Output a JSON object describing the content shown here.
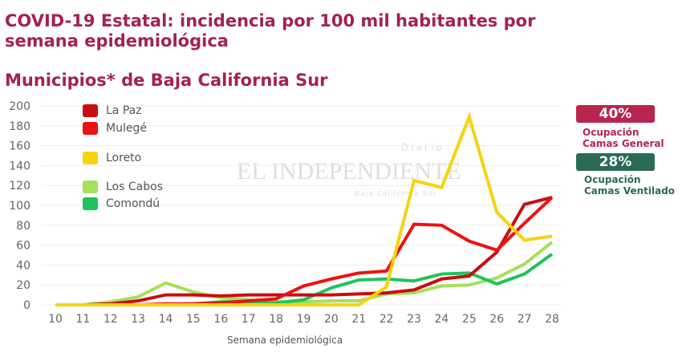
{
  "header": {
    "title": "COVID-19 Estatal: incidencia por 100 mil habitantes por semana epidemiológica",
    "subtitle": "Municipios* de Baja California Sur"
  },
  "watermark": {
    "brand": "EL INDEPENDIENTE",
    "top": "Diario",
    "bottom": "Baja California Sur"
  },
  "badges": [
    {
      "value": "40%",
      "label1": "Ocupación",
      "label2": "Camas General",
      "color": "#b8254f"
    },
    {
      "value": "28%",
      "label1": "Ocupación",
      "label2": "Camas Ventilado",
      "color": "#2a6b57"
    }
  ],
  "chart_data": {
    "type": "line",
    "title": "",
    "xlabel": "Semana epidemiológica",
    "ylabel": "",
    "x": [
      10,
      11,
      12,
      13,
      14,
      15,
      16,
      17,
      18,
      19,
      20,
      21,
      22,
      23,
      24,
      25,
      26,
      27,
      28
    ],
    "ylim": [
      0,
      200
    ],
    "yticks": [
      0,
      20,
      40,
      60,
      80,
      100,
      120,
      140,
      160,
      180,
      200
    ],
    "grid": true,
    "legend": "top-left",
    "series": [
      {
        "name": "La Paz",
        "color": "#c80e0e",
        "values": [
          0,
          0,
          1,
          4,
          10,
          10,
          9,
          10,
          10,
          10,
          10,
          11,
          12,
          15,
          26,
          29,
          53,
          101,
          108
        ]
      },
      {
        "name": "Mulegé",
        "color": "#ee1111",
        "values": [
          0,
          0,
          0,
          0,
          1,
          1,
          2,
          4,
          6,
          19,
          26,
          32,
          34,
          81,
          80,
          64,
          55,
          82,
          108
        ]
      },
      {
        "name": "Loreto",
        "color": "#f7d20e",
        "values": [
          0,
          0,
          0,
          0,
          0,
          0,
          0,
          0,
          0,
          0,
          0,
          0,
          18,
          125,
          118,
          189,
          93,
          65,
          69
        ]
      },
      {
        "name": "Los Cabos",
        "color": "#a6e05a",
        "values": [
          0,
          0,
          3,
          8,
          22,
          13,
          7,
          5,
          3,
          3,
          4,
          4,
          11,
          12,
          19,
          20,
          27,
          41,
          63
        ]
      },
      {
        "name": "Comondú",
        "color": "#1ec45a",
        "values": [
          0,
          0,
          0,
          0,
          0,
          1,
          3,
          3,
          2,
          5,
          17,
          25,
          26,
          24,
          31,
          32,
          21,
          31,
          51
        ]
      }
    ]
  }
}
